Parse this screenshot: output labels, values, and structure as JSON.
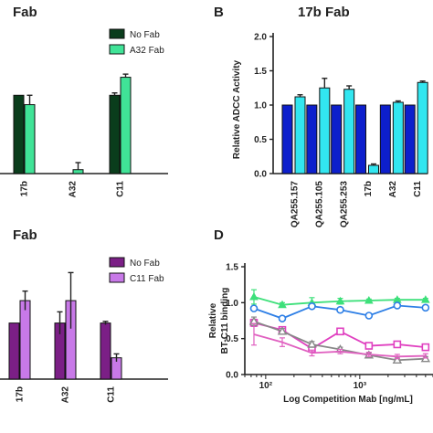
{
  "panels": {
    "A": {
      "title": "Fab"
    },
    "B": {
      "letter": "B",
      "title": "17b Fab"
    },
    "C": {
      "title": "Fab"
    },
    "D": {
      "letter": "D"
    }
  },
  "chart_data": [
    {
      "panel": "A",
      "type": "bar",
      "categories": [
        "17b",
        "A32",
        "C11"
      ],
      "series": [
        {
          "name": "No Fab",
          "color": "#0a3d1c",
          "values": [
            1.0,
            0.0,
            1.0
          ],
          "errors": [
            0.0,
            0.0,
            0.03
          ]
        },
        {
          "name": "A32 Fab",
          "color": "#40e397",
          "values": [
            0.88,
            0.05,
            1.23
          ],
          "errors": [
            0.12,
            0.09,
            0.04
          ]
        }
      ],
      "ylim": [
        0,
        1.75
      ],
      "legend_position": "top-right",
      "xlabel": "",
      "ylabel": ""
    },
    {
      "panel": "B",
      "type": "bar",
      "title": "17b Fab",
      "categories": [
        "QA255.157",
        "QA255.105",
        "QA255.253",
        "17b",
        "A32",
        "C11"
      ],
      "series": [
        {
          "color": "#0d1fcc",
          "values": [
            1.0,
            1.0,
            1.0,
            1.0,
            1.0,
            1.0
          ],
          "errors": [
            0,
            0,
            0,
            0,
            0,
            0
          ]
        },
        {
          "color": "#32e6f0",
          "values": [
            1.12,
            1.25,
            1.23,
            0.12,
            1.04,
            1.33
          ],
          "errors": [
            0.03,
            0.14,
            0.05,
            0.02,
            0.02,
            0.02
          ]
        }
      ],
      "ylabel": "Relative ADCC Activity",
      "yticks": [
        "0.0",
        "0.5",
        "1.0",
        "1.5",
        "2.0"
      ],
      "ylim": [
        0,
        2.0
      ]
    },
    {
      "panel": "C",
      "type": "bar",
      "categories": [
        "17b",
        "A32",
        "C11"
      ],
      "series": [
        {
          "name": "No Fab",
          "color": "#7b1f86",
          "values": [
            1.0,
            1.0,
            1.0
          ],
          "errors": [
            0.0,
            0.2,
            0.03
          ]
        },
        {
          "name": "C11 Fab",
          "color": "#c879e8",
          "values": [
            1.4,
            1.4,
            0.38
          ],
          "errors": [
            0.17,
            0.5,
            0.07
          ]
        }
      ],
      "ylim": [
        0,
        2.2
      ],
      "legend_position": "top-right",
      "xlabel": "",
      "ylabel": ""
    },
    {
      "panel": "D",
      "type": "line",
      "xlabel": "Log Competition Mab [ng/mL]",
      "ylabel": "Relative\nBT-C11 binding",
      "yticks": [
        "0.0",
        "0.5",
        "1.0",
        "1.5"
      ],
      "ylim": [
        0,
        1.5
      ],
      "xscale": "log",
      "xtick_labels": [
        "10²",
        "10³"
      ],
      "series": [
        {
          "color": "#3de07a",
          "marker": "triangle",
          "x": [
            75,
            150,
            310,
            620,
            1250,
            2500,
            5000
          ],
          "y": [
            1.08,
            0.97,
            1.0,
            1.02,
            1.03,
            1.04,
            1.04
          ],
          "errors": [
            0.1,
            0.03,
            0.07,
            0.04,
            0.02,
            0.02,
            0.02
          ]
        },
        {
          "color": "#2e7fe6",
          "marker": "circle",
          "x": [
            75,
            150,
            310,
            620,
            1250,
            2500,
            5000
          ],
          "y": [
            0.92,
            0.78,
            0.95,
            0.9,
            0.82,
            0.96,
            0.93
          ],
          "errors": [
            0.03,
            0.02,
            0.03,
            0.02,
            0.02,
            0.02,
            0.02
          ]
        },
        {
          "color": "#e040c0",
          "marker": "square",
          "x": [
            75,
            150,
            310,
            620,
            1250,
            2500,
            5000
          ],
          "y": [
            0.72,
            0.62,
            0.36,
            0.6,
            0.4,
            0.42,
            0.38
          ],
          "errors": [
            0.05,
            0.04,
            0.05,
            0.03,
            0.04,
            0.03,
            0.03
          ]
        },
        {
          "color": "#888888",
          "marker": "triangle-open",
          "x": [
            75,
            150,
            310,
            620,
            1250,
            2500,
            5000
          ],
          "y": [
            0.74,
            0.6,
            0.42,
            0.35,
            0.27,
            0.2,
            0.22
          ],
          "errors": [
            0.06,
            0.04,
            0.04,
            0.03,
            0.03,
            0.03,
            0.03
          ]
        },
        {
          "color": "#e060c0",
          "marker": "line",
          "x": [
            75,
            150,
            310,
            620,
            1250,
            2500,
            5000
          ],
          "y": [
            0.56,
            0.45,
            0.3,
            0.32,
            0.28,
            0.25,
            0.26
          ],
          "errors": [
            0.15,
            0.06,
            0.04,
            0.03,
            0.03,
            0.03,
            0.03
          ]
        }
      ]
    }
  ]
}
